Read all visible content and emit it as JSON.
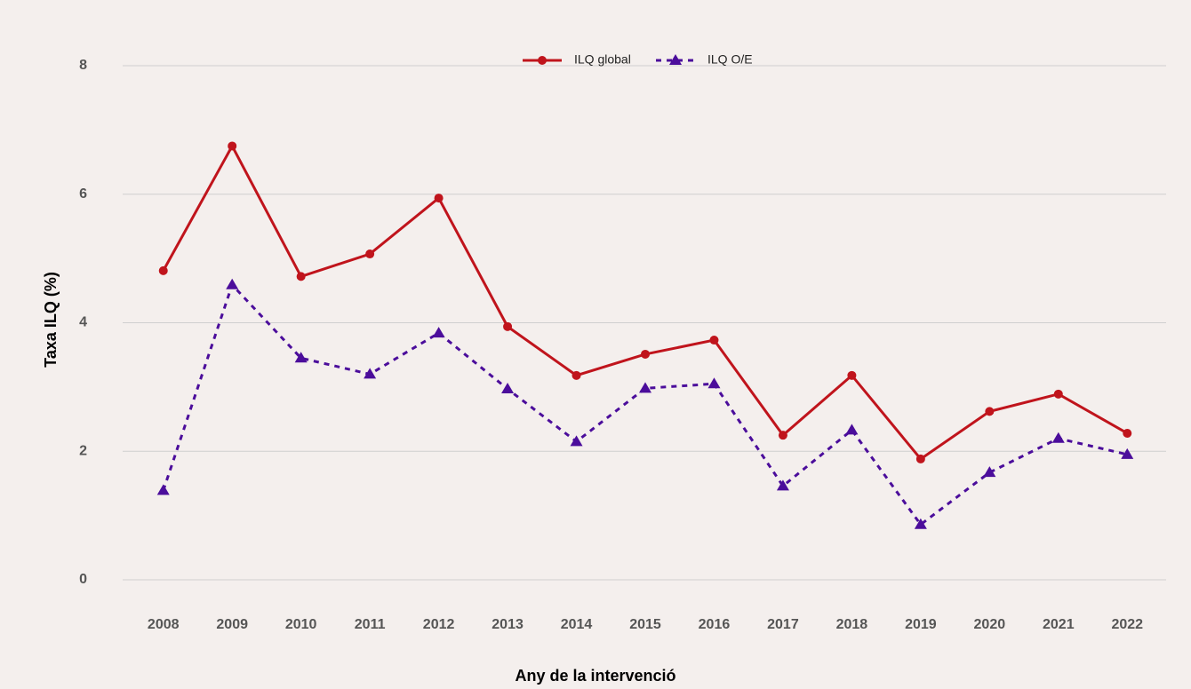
{
  "chart_data": {
    "type": "line",
    "x_label": "Any de la intervenció",
    "y_label": "Taxa ILQ (%)",
    "categories": [
      "2008",
      "2009",
      "2010",
      "2011",
      "2012",
      "2013",
      "2014",
      "2015",
      "2016",
      "2017",
      "2018",
      "2019",
      "2020",
      "2021",
      "2022"
    ],
    "series": [
      {
        "name": "ILQ global",
        "color": "#c0141c",
        "marker": "circle",
        "dashed": false,
        "values": [
          4.81,
          6.75,
          4.72,
          5.07,
          5.94,
          3.94,
          3.18,
          3.51,
          3.73,
          2.25,
          3.18,
          1.88,
          2.62,
          2.89,
          2.28
        ]
      },
      {
        "name": "ILQ O/E",
        "color": "#4b0d9b",
        "marker": "triangle",
        "dashed": true,
        "values": [
          1.39,
          4.59,
          3.45,
          3.2,
          3.84,
          2.97,
          2.15,
          2.98,
          3.05,
          1.46,
          2.33,
          0.86,
          1.67,
          2.2,
          1.95
        ]
      }
    ],
    "ylim": [
      0,
      8
    ],
    "yticks": [
      0,
      2,
      4,
      6,
      8
    ],
    "grid": true,
    "legend": "top"
  }
}
